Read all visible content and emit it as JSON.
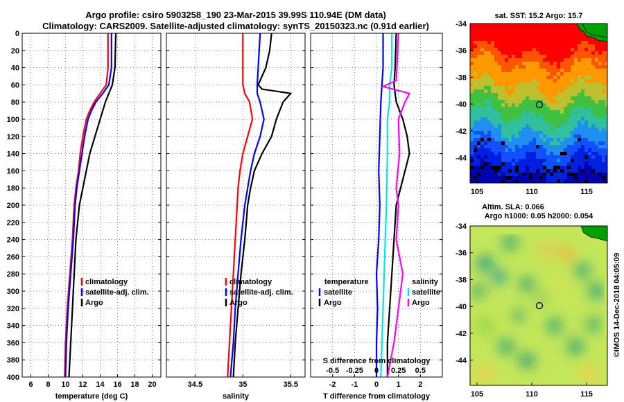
{
  "title": {
    "line1": "Argo profile: csiro 5903258_190 23-Mar-2015 39.99S 110.94E (DM data)",
    "line2": "Climatology: CARS2009. Satellite-adjusted climatology: synTS_20150323.nc (0.91d earlier)"
  },
  "colors": {
    "climatology": "#ff0000",
    "satellite": "#0000ff",
    "argo": "#000000",
    "sat_salinity": "#00e5e5",
    "clim_salinity_diff": "#ff00ff"
  },
  "chart_data": [
    {
      "id": "temperature",
      "type": "line",
      "xlabel": "temperature (deg C)",
      "xlim": [
        5,
        21
      ],
      "xticks": [
        6,
        8,
        10,
        12,
        14,
        16,
        18,
        20
      ],
      "ylim": [
        0,
        400
      ],
      "yticks": [
        0,
        20,
        40,
        60,
        80,
        100,
        120,
        140,
        160,
        180,
        200,
        220,
        240,
        260,
        280,
        300,
        320,
        340,
        360,
        380,
        400
      ],
      "legend": [
        "climatology",
        "satellite-adj. clim.",
        "Argo"
      ],
      "series": [
        {
          "name": "climatology",
          "color": "#ff0000",
          "points": [
            [
              14.9,
              0
            ],
            [
              14.9,
              40
            ],
            [
              14.7,
              60
            ],
            [
              14.0,
              70
            ],
            [
              13.3,
              80
            ],
            [
              12.8,
              90
            ],
            [
              12.4,
              100
            ],
            [
              12.0,
              120
            ],
            [
              11.7,
              140
            ],
            [
              11.5,
              160
            ],
            [
              11.2,
              180
            ],
            [
              11.0,
              200
            ],
            [
              10.8,
              240
            ],
            [
              10.5,
              280
            ],
            [
              10.2,
              320
            ],
            [
              10.0,
              360
            ],
            [
              9.9,
              400
            ]
          ]
        },
        {
          "name": "satellite-adj. clim.",
          "color": "#0000ff",
          "points": [
            [
              15.3,
              0
            ],
            [
              15.3,
              40
            ],
            [
              15.0,
              60
            ],
            [
              14.3,
              70
            ],
            [
              13.5,
              80
            ],
            [
              13.0,
              90
            ],
            [
              12.6,
              100
            ],
            [
              12.2,
              120
            ],
            [
              11.9,
              140
            ],
            [
              11.6,
              160
            ],
            [
              11.3,
              180
            ],
            [
              11.1,
              200
            ],
            [
              10.9,
              240
            ],
            [
              10.6,
              280
            ],
            [
              10.3,
              320
            ],
            [
              10.1,
              360
            ],
            [
              10.0,
              400
            ]
          ]
        },
        {
          "name": "Argo",
          "color": "#000000",
          "points": [
            [
              15.8,
              0
            ],
            [
              15.7,
              40
            ],
            [
              15.4,
              60
            ],
            [
              14.6,
              80
            ],
            [
              14.0,
              100
            ],
            [
              13.4,
              120
            ],
            [
              12.8,
              140
            ],
            [
              12.4,
              160
            ],
            [
              12.0,
              180
            ],
            [
              11.6,
              200
            ],
            [
              11.2,
              240
            ],
            [
              11.0,
              280
            ],
            [
              10.8,
              320
            ],
            [
              10.6,
              360
            ],
            [
              10.4,
              400
            ]
          ]
        }
      ]
    },
    {
      "id": "salinity",
      "type": "line",
      "xlabel": "salinity",
      "xlim": [
        34.2,
        35.65
      ],
      "xticks": [
        34.5,
        35,
        35.5
      ],
      "ylim": [
        0,
        400
      ],
      "yticks": [
        0,
        20,
        40,
        60,
        80,
        100,
        120,
        140,
        160,
        180,
        200,
        220,
        240,
        260,
        280,
        300,
        320,
        340,
        360,
        380,
        400
      ],
      "legend": [
        "climatology",
        "satellite-adj. clim.",
        "Argo"
      ],
      "series": [
        {
          "name": "climatology",
          "color": "#ff0000",
          "points": [
            [
              35.0,
              0
            ],
            [
              35.0,
              60
            ],
            [
              35.02,
              70
            ],
            [
              35.07,
              80
            ],
            [
              35.1,
              100
            ],
            [
              35.05,
              120
            ],
            [
              35.0,
              140
            ],
            [
              34.97,
              160
            ],
            [
              34.95,
              180
            ],
            [
              34.94,
              200
            ],
            [
              34.92,
              240
            ],
            [
              34.9,
              280
            ],
            [
              34.88,
              320
            ],
            [
              34.86,
              360
            ],
            [
              34.84,
              400
            ]
          ]
        },
        {
          "name": "satellite-adj. clim.",
          "color": "#0000ff",
          "points": [
            [
              35.18,
              0
            ],
            [
              35.16,
              40
            ],
            [
              35.15,
              60
            ],
            [
              35.15,
              70
            ],
            [
              35.18,
              80
            ],
            [
              35.22,
              100
            ],
            [
              35.18,
              120
            ],
            [
              35.12,
              140
            ],
            [
              35.08,
              160
            ],
            [
              35.05,
              180
            ],
            [
              35.02,
              200
            ],
            [
              34.98,
              240
            ],
            [
              34.95,
              280
            ],
            [
              34.92,
              320
            ],
            [
              34.9,
              360
            ],
            [
              34.87,
              400
            ]
          ]
        },
        {
          "name": "Argo",
          "color": "#000000",
          "points": [
            [
              35.3,
              0
            ],
            [
              35.28,
              20
            ],
            [
              35.24,
              40
            ],
            [
              35.16,
              60
            ],
            [
              35.2,
              65
            ],
            [
              35.5,
              70
            ],
            [
              35.42,
              80
            ],
            [
              35.35,
              100
            ],
            [
              35.3,
              120
            ],
            [
              35.2,
              140
            ],
            [
              35.12,
              160
            ],
            [
              35.08,
              180
            ],
            [
              35.05,
              200
            ],
            [
              35.02,
              240
            ],
            [
              34.98,
              280
            ],
            [
              34.95,
              320
            ],
            [
              34.92,
              360
            ],
            [
              34.9,
              400
            ]
          ]
        }
      ]
    },
    {
      "id": "difference",
      "type": "line",
      "xlabel": "T difference from climatology",
      "top_axis_label": "S difference from climatology",
      "xlim": [
        -3.0,
        3.0
      ],
      "xticks": [
        -2,
        -1,
        0,
        1,
        2
      ],
      "top_xticks": [
        "-0.5",
        "-0.25",
        "0",
        "0.25",
        "0.5"
      ],
      "top_xtick_positions": [
        -2,
        -1,
        0,
        1,
        2
      ],
      "ylim": [
        0,
        400
      ],
      "yticks": [
        0,
        20,
        40,
        60,
        80,
        100,
        120,
        140,
        160,
        180,
        200,
        220,
        240,
        260,
        280,
        300,
        320,
        340,
        360,
        380,
        400
      ],
      "legend_left": {
        "title": "temperature",
        "items": [
          "satellite",
          "Argo"
        ]
      },
      "legend_right": {
        "title": "salinity",
        "items": [
          "satellite",
          "Argo"
        ]
      },
      "series": [
        {
          "name": "T satellite",
          "color": "#0000ff",
          "points": [
            [
              0.3,
              0
            ],
            [
              0.3,
              40
            ],
            [
              0.2,
              80
            ],
            [
              0.15,
              120
            ],
            [
              0.1,
              160
            ],
            [
              0.15,
              200
            ],
            [
              0.1,
              240
            ],
            [
              0.0,
              280
            ],
            [
              0.05,
              320
            ],
            [
              0.0,
              360
            ],
            [
              0.0,
              400
            ]
          ]
        },
        {
          "name": "T Argo",
          "color": "#000000",
          "points": [
            [
              0.9,
              0
            ],
            [
              0.85,
              40
            ],
            [
              0.8,
              60
            ],
            [
              0.9,
              80
            ],
            [
              1.2,
              100
            ],
            [
              1.4,
              120
            ],
            [
              1.5,
              140
            ],
            [
              1.3,
              160
            ],
            [
              1.1,
              180
            ],
            [
              0.9,
              200
            ],
            [
              0.8,
              240
            ],
            [
              0.7,
              280
            ],
            [
              0.6,
              320
            ],
            [
              0.5,
              360
            ],
            [
              0.5,
              400
            ]
          ]
        },
        {
          "name": "S satellite",
          "color": "#00e5e5",
          "points": [
            [
              0.7,
              0
            ],
            [
              0.7,
              40
            ],
            [
              0.6,
              60
            ],
            [
              0.6,
              80
            ],
            [
              0.5,
              100
            ],
            [
              0.5,
              140
            ],
            [
              0.45,
              200
            ],
            [
              0.4,
              240
            ],
            [
              0.35,
              280
            ],
            [
              0.3,
              320
            ],
            [
              0.25,
              360
            ],
            [
              0.2,
              400
            ]
          ]
        },
        {
          "name": "S Argo",
          "color": "#ff00ff",
          "points": [
            [
              1.0,
              0
            ],
            [
              0.95,
              30
            ],
            [
              0.9,
              55
            ],
            [
              0.3,
              62
            ],
            [
              1.5,
              70
            ],
            [
              1.3,
              80
            ],
            [
              1.0,
              100
            ],
            [
              1.05,
              140
            ],
            [
              0.9,
              180
            ],
            [
              1.0,
              200
            ],
            [
              0.9,
              240
            ],
            [
              1.2,
              280
            ],
            [
              1.0,
              320
            ],
            [
              0.8,
              360
            ],
            [
              0.5,
              400
            ]
          ]
        }
      ]
    }
  ],
  "maps": [
    {
      "id": "sst-map",
      "title": "sat. SST: 15.2 Argo: 15.7",
      "lon_ticks": [
        "105",
        "110",
        "115"
      ],
      "lat_ticks": [
        "-34",
        "-36",
        "-38",
        "-40",
        "-42",
        "-44"
      ],
      "argo_lon": 110.94,
      "argo_lat": -39.99
    },
    {
      "id": "sla-map",
      "title_line1": "Altim. SLA: 0.066",
      "title_line2": "Argo h1000: 0.05 h2000: 0.054",
      "lon_ticks": [
        "105",
        "110",
        "115"
      ],
      "lat_ticks": [
        "-34",
        "-36",
        "-38",
        "-40",
        "-42",
        "-44"
      ],
      "argo_lon": 110.94,
      "argo_lat": -39.99
    }
  ],
  "credit": "©IMOS 14-Dec-2018 04:05:09"
}
